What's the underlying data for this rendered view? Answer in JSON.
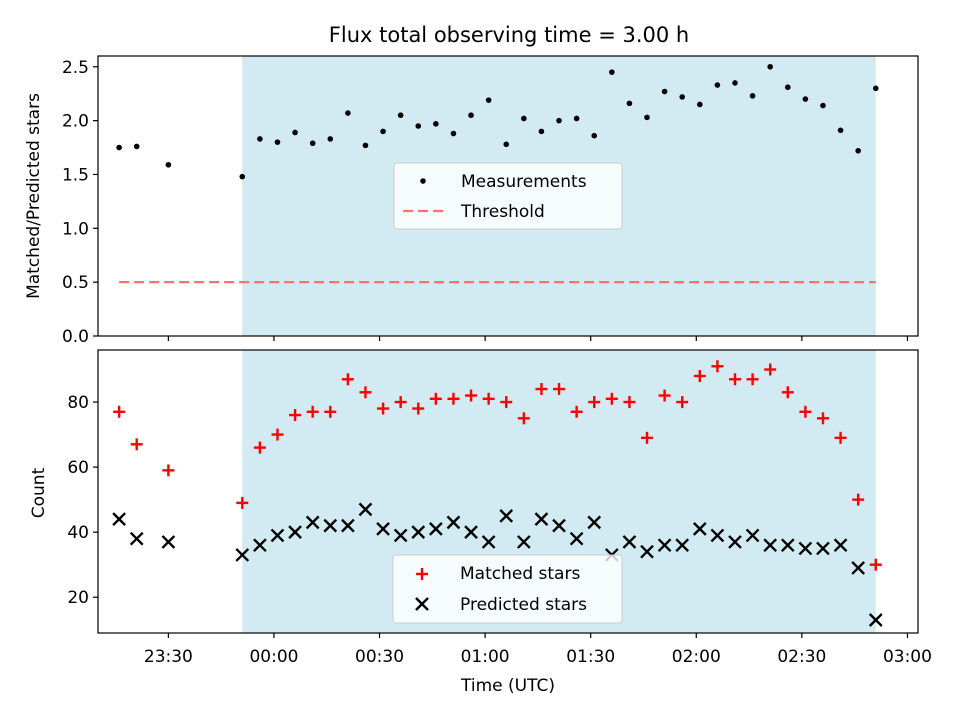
{
  "chart_data": [
    {
      "type": "scatter",
      "title": "Flux total observing time = 3.00 h",
      "ylabel": "Matched/Predicted stars",
      "xlabel": "",
      "ylim": [
        0,
        2.6
      ],
      "yticks": [
        0.0,
        0.5,
        1.0,
        1.5,
        2.0,
        2.5
      ],
      "ytick_labels": [
        "0.0",
        "0.5",
        "1.0",
        "1.5",
        "2.0",
        "2.5"
      ],
      "shaded_span": {
        "start": "23:51",
        "end": "02:51",
        "color": "#add8e6"
      },
      "threshold": 0.5,
      "legend": {
        "placement": "center",
        "entries": [
          "Measurements",
          "Threshold"
        ]
      },
      "series": [
        {
          "name": "Measurements",
          "x": [
            "23:16",
            "23:21",
            "23:30",
            "23:51",
            "23:56",
            "00:01",
            "00:06",
            "00:11",
            "00:16",
            "00:21",
            "00:26",
            "00:31",
            "00:36",
            "00:41",
            "00:46",
            "00:51",
            "00:56",
            "01:01",
            "01:06",
            "01:11",
            "01:16",
            "01:21",
            "01:26",
            "01:31",
            "01:36",
            "01:41",
            "01:46",
            "01:51",
            "01:56",
            "02:01",
            "02:06",
            "02:11",
            "02:16",
            "02:21",
            "02:26",
            "02:31",
            "02:36",
            "02:41",
            "02:46",
            "02:51"
          ],
          "values": [
            1.75,
            1.76,
            1.59,
            1.48,
            1.83,
            1.8,
            1.89,
            1.79,
            1.83,
            2.07,
            1.77,
            1.9,
            2.05,
            1.95,
            1.97,
            1.88,
            2.05,
            2.19,
            1.78,
            2.02,
            1.9,
            2.0,
            2.02,
            1.86,
            2.45,
            2.16,
            2.03,
            2.27,
            2.22,
            2.15,
            2.33,
            2.35,
            2.23,
            2.5,
            2.31,
            2.2,
            2.14,
            1.91,
            1.72,
            2.3
          ]
        },
        {
          "name": "Threshold",
          "x": [
            "23:16",
            "02:51"
          ],
          "values": [
            0.5,
            0.5
          ],
          "color": "#ff7070"
        }
      ]
    },
    {
      "type": "scatter",
      "title": "",
      "ylabel": "Count",
      "xlabel": "Time (UTC)",
      "ylim": [
        9,
        96
      ],
      "yticks": [
        20,
        40,
        60,
        80
      ],
      "ytick_labels": [
        "20",
        "40",
        "60",
        "80"
      ],
      "xlim": [
        "23:10",
        "03:03"
      ],
      "xticks": [
        "23:30",
        "00:00",
        "00:30",
        "01:00",
        "01:30",
        "02:00",
        "02:30",
        "03:00"
      ],
      "xtick_labels": [
        "23:30",
        "00:00",
        "00:30",
        "01:00",
        "01:30",
        "02:00",
        "02:30",
        "03:00"
      ],
      "shaded_span": {
        "start": "23:51",
        "end": "02:51",
        "color": "#add8e6"
      },
      "legend": {
        "placement": "bottom-center",
        "entries": [
          "Matched stars",
          "Predicted stars"
        ]
      },
      "series": [
        {
          "name": "Matched stars",
          "color": "#ff0000",
          "marker": "plus",
          "x": [
            "23:16",
            "23:21",
            "23:30",
            "23:51",
            "23:56",
            "00:01",
            "00:06",
            "00:11",
            "00:16",
            "00:21",
            "00:26",
            "00:31",
            "00:36",
            "00:41",
            "00:46",
            "00:51",
            "00:56",
            "01:01",
            "01:06",
            "01:11",
            "01:16",
            "01:21",
            "01:26",
            "01:31",
            "01:36",
            "01:41",
            "01:46",
            "01:51",
            "01:56",
            "02:01",
            "02:06",
            "02:11",
            "02:16",
            "02:21",
            "02:26",
            "02:31",
            "02:36",
            "02:41",
            "02:46",
            "02:51"
          ],
          "values": [
            77,
            67,
            59,
            49,
            66,
            70,
            76,
            77,
            77,
            87,
            83,
            78,
            80,
            78,
            81,
            81,
            82,
            81,
            80,
            75,
            84,
            84,
            77,
            80,
            81,
            80,
            69,
            82,
            80,
            88,
            91,
            87,
            87,
            90,
            83,
            77,
            75,
            69,
            50,
            30
          ]
        },
        {
          "name": "Predicted stars",
          "color": "#000000",
          "marker": "x",
          "x": [
            "23:16",
            "23:21",
            "23:30",
            "23:51",
            "23:56",
            "00:01",
            "00:06",
            "00:11",
            "00:16",
            "00:21",
            "00:26",
            "00:31",
            "00:36",
            "00:41",
            "00:46",
            "00:51",
            "00:56",
            "01:01",
            "01:06",
            "01:11",
            "01:16",
            "01:21",
            "01:26",
            "01:31",
            "01:36",
            "01:41",
            "01:46",
            "01:51",
            "01:56",
            "02:01",
            "02:06",
            "02:11",
            "02:16",
            "02:21",
            "02:26",
            "02:31",
            "02:36",
            "02:41",
            "02:46",
            "02:51"
          ],
          "values": [
            44,
            38,
            37,
            33,
            36,
            39,
            40,
            43,
            42,
            42,
            47,
            41,
            39,
            40,
            41,
            43,
            40,
            37,
            45,
            37,
            44,
            42,
            38,
            43,
            33,
            37,
            34,
            36,
            36,
            41,
            39,
            37,
            39,
            36,
            36,
            35,
            35,
            36,
            29,
            13
          ]
        }
      ]
    }
  ]
}
